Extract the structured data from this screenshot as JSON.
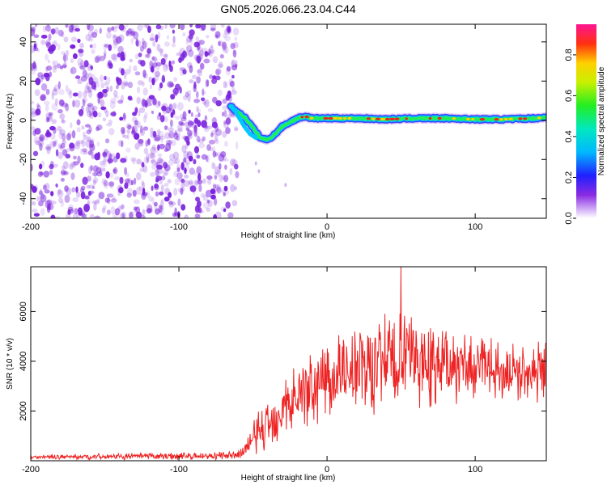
{
  "title": "GN05.2026.066.23.04.C44",
  "chart_data": [
    {
      "type": "heatmap",
      "name": "spectrogram",
      "xlabel": "Height of straight line (km)",
      "ylabel": "Frequency (Hz)",
      "xlim": [
        -200,
        148
      ],
      "ylim": [
        -50,
        49
      ],
      "xticks": [
        -200,
        -100,
        0,
        100
      ],
      "yticks": [
        -40,
        -20,
        0,
        20,
        40
      ],
      "noise_region_x": [
        -200,
        -64
      ],
      "signal_trace": {
        "x": [
          -65,
          -60,
          -55,
          -50,
          -45,
          -40,
          -35,
          -30,
          -25,
          -20,
          -15,
          -10,
          0,
          20,
          40,
          60,
          80,
          100,
          120,
          140,
          148
        ],
        "y": [
          7,
          4,
          1,
          -4,
          -9,
          -10,
          -7,
          -3,
          -1,
          1,
          2,
          1,
          1,
          1,
          0.5,
          1,
          1,
          0.5,
          0.5,
          1,
          1.5
        ]
      },
      "colorbar": {
        "label": "Normalized spectral amplitude",
        "range": [
          0.0,
          0.95
        ],
        "ticks": [
          "0.0",
          "0.2",
          "0.4",
          "0.6",
          "0.8"
        ]
      }
    },
    {
      "type": "line",
      "name": "snr",
      "xlabel": "Height of straight line (km)",
      "ylabel": "SNR (10 * v/v)",
      "xlim": [
        -200,
        148
      ],
      "ylim": [
        0,
        7800
      ],
      "xticks": [
        -200,
        -100,
        0,
        100
      ],
      "yticks": [
        2000,
        4000,
        6000
      ],
      "color": "#ee2222",
      "envelope": {
        "x": [
          -200,
          -60,
          -55,
          -50,
          -45,
          -40,
          -35,
          -30,
          -20,
          -10,
          0,
          20,
          40,
          50,
          60,
          80,
          100,
          120,
          148
        ],
        "mean": [
          150,
          200,
          500,
          900,
          1200,
          1500,
          1800,
          2200,
          2600,
          3000,
          3400,
          3700,
          4000,
          4100,
          4000,
          3900,
          3700,
          3600,
          3600
        ],
        "amplitude": [
          100,
          200,
          500,
          900,
          1100,
          1200,
          1400,
          1500,
          1600,
          1800,
          2000,
          2200,
          2400,
          2600,
          2200,
          1800,
          1400,
          1300,
          1400
        ]
      },
      "peak": {
        "x": 50,
        "y": 7800
      }
    }
  ],
  "colors": {
    "noise": "#7a22dd",
    "trace_low": "#2233ff",
    "trace_mid": "#22ee55",
    "trace_high": "#ee2222"
  }
}
